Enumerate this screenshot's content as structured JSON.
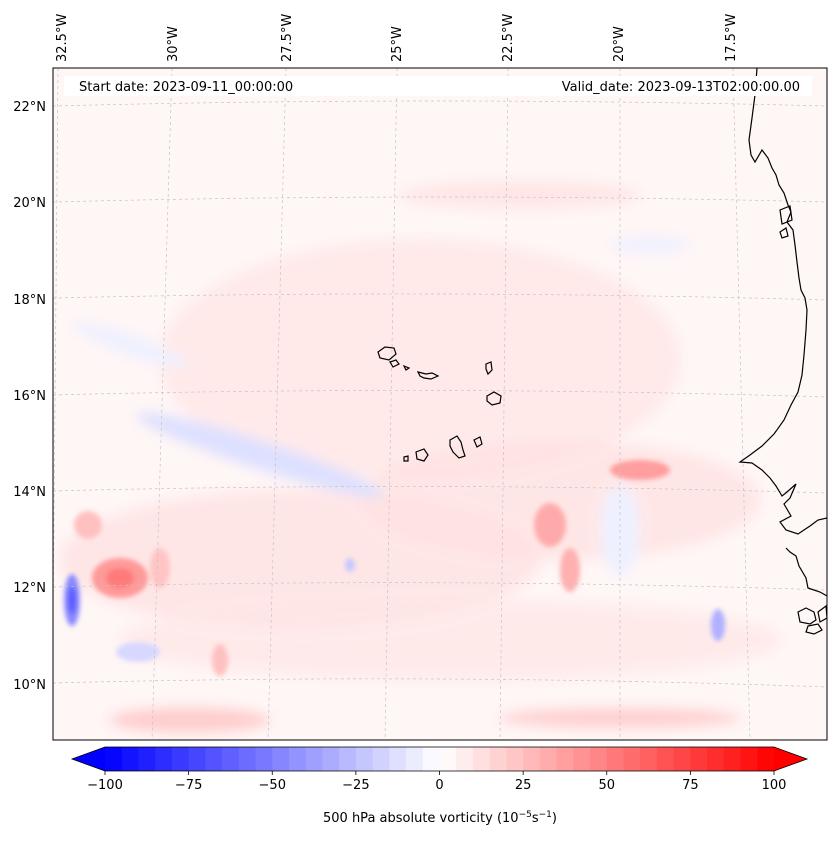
{
  "map": {
    "start_label": "Start date: 2023-09-11_00:00:00",
    "valid_label": "Valid_date: 2023-09-13T02:00:00.00",
    "lon_labels": [
      "32.5°W",
      "30°W",
      "27.5°W",
      "25°W",
      "22.5°W",
      "20°W",
      "17.5°W"
    ],
    "lat_labels": [
      "22°N",
      "20°N",
      "18°N",
      "16°N",
      "14°N",
      "12°N",
      "10°N"
    ],
    "variable": "500 hPa absolute vorticity",
    "units_text": "(10",
    "units_exp1": "−5",
    "units_mid": "s",
    "units_exp2": "−1",
    "units_close": ")"
  },
  "colorbar": {
    "min": -100,
    "max": 100,
    "step": 5,
    "extend": "both",
    "ticks": [
      -100,
      -75,
      -50,
      -25,
      0,
      25,
      50,
      75,
      100
    ],
    "tick_labels": [
      "−100",
      "−75",
      "−50",
      "−25",
      "0",
      "25",
      "50",
      "75",
      "100"
    ],
    "colormap": "bwr",
    "colors": {
      "negative": "#0000ff",
      "zero": "#ffffff",
      "positive": "#ff0000"
    }
  },
  "features": {
    "coastline_color": "#000000",
    "gridline_color": "#bbbbbb",
    "places": [
      "Cape Verde islands",
      "West African coast"
    ]
  }
}
